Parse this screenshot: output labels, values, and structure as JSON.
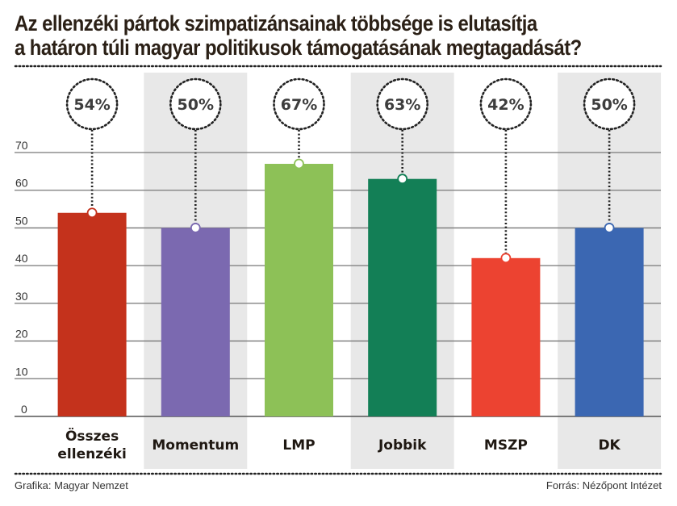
{
  "chart_data": {
    "type": "bar",
    "title": "Az ellenzéki pártok szimpatizánsainak többsége is elutasítja a határon túli magyar politikusok támogatásának megtagadását?",
    "title_lines": [
      "Az ellenzéki pártok szimpatizánsainak többsége is elutasítja",
      "a határon túli magyar politikusok támogatásának megtagadását?"
    ],
    "categories": [
      "Összes ellenzéki",
      "Momentum",
      "LMP",
      "Jobbik",
      "MSZP",
      "DK"
    ],
    "category_lines": [
      [
        "Összes",
        "ellenzéki"
      ],
      [
        "Momentum"
      ],
      [
        "LMP"
      ],
      [
        "Jobbik"
      ],
      [
        "MSZP"
      ],
      [
        "DK"
      ]
    ],
    "values": [
      54,
      50,
      67,
      63,
      42,
      50
    ],
    "value_labels": [
      "54%",
      "50%",
      "67%",
      "63%",
      "42%",
      "50%"
    ],
    "colors": [
      "#c4321c",
      "#7b69b0",
      "#8dc157",
      "#137f56",
      "#ec4331",
      "#3b67b2"
    ],
    "column_shading": [
      false,
      true,
      false,
      true,
      false,
      true
    ],
    "shading_color": "#e8e8e8",
    "xlabel": "",
    "ylabel": "",
    "ylim": [
      0,
      70
    ],
    "yticks": [
      0,
      10,
      20,
      30,
      40,
      50,
      60,
      70
    ],
    "grid": true,
    "legend": "none"
  },
  "footer": {
    "left": "Grafika: Magyar Nemzet",
    "right": "Forrás: Nézőpont Intézet"
  }
}
